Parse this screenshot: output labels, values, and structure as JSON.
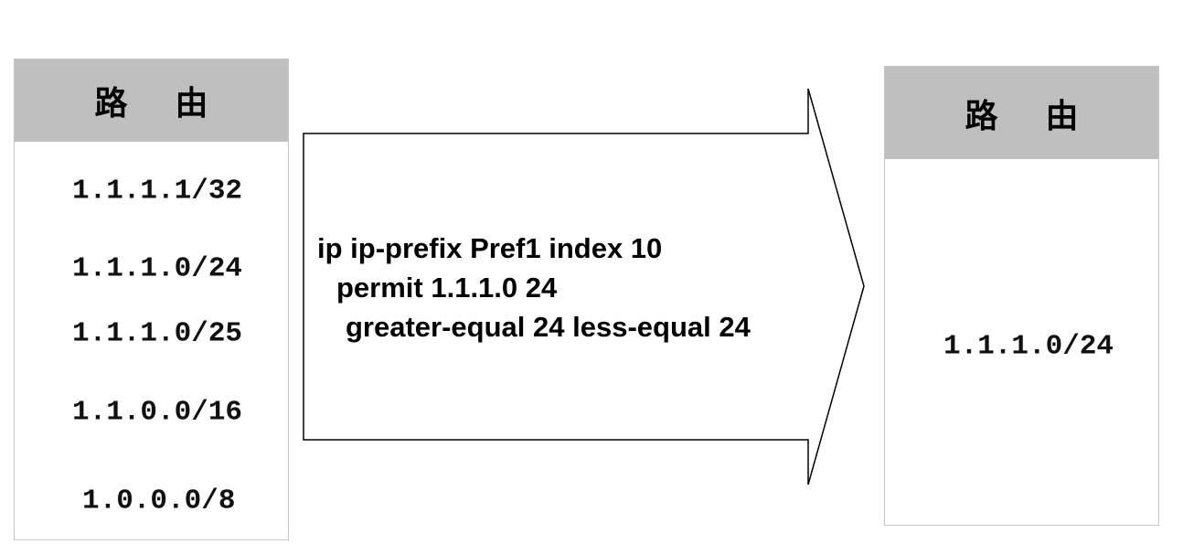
{
  "left_table": {
    "header": "路由",
    "routes": [
      "1.1.1.1/32",
      "1.1.1.0/24",
      "1.1.1.0/25",
      "1.1.0.0/16",
      "1.0.0.0/8"
    ]
  },
  "filter": {
    "line1": "ip ip-prefix Pref1 index 10",
    "line2": "permit 1.1.1.0 24",
    "line3": "greater-equal 24 less-equal 24"
  },
  "right_table": {
    "header": "路由",
    "routes": [
      "1.1.1.0/24"
    ]
  }
}
